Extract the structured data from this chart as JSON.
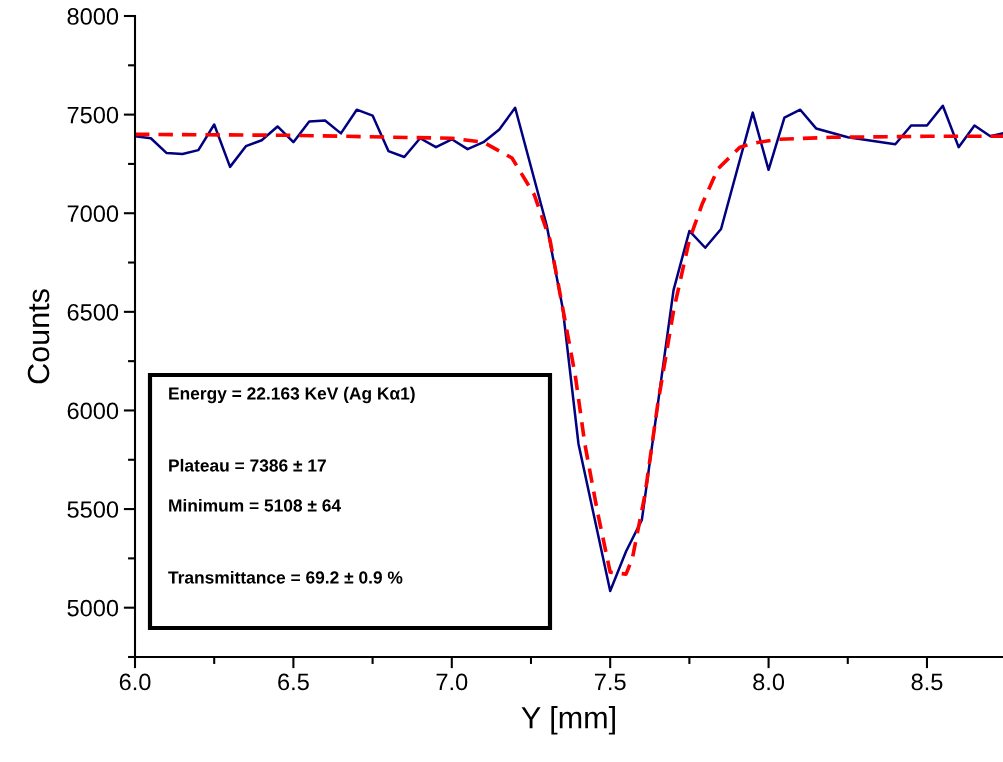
{
  "chart_data": {
    "type": "line",
    "xlabel": "Y [mm]",
    "ylabel": "Counts",
    "xlim": [
      6.0,
      8.74
    ],
    "ylim": [
      4750,
      8000
    ],
    "xticks": [
      {
        "value": 6,
        "label": "6.0"
      },
      {
        "value": 6.25,
        "label": null
      },
      6.5,
      {
        "value": 6.75,
        "label": null
      },
      {
        "value": 7,
        "label": "7.0"
      },
      {
        "value": 7.25,
        "label": null
      },
      7.5,
      {
        "value": 7.75,
        "label": null
      },
      {
        "value": 8,
        "label": "8.0"
      },
      {
        "value": 8.25,
        "label": null
      },
      8.5
    ],
    "yticks": [
      {
        "value": 4750,
        "label": null
      },
      5000,
      {
        "value": 5250,
        "label": null
      },
      5500,
      {
        "value": 5750,
        "label": null
      },
      6000,
      {
        "value": 6250,
        "label": null
      },
      6500,
      {
        "value": 6750,
        "label": null
      },
      7000,
      {
        "value": 7250,
        "label": null
      },
      7500,
      {
        "value": 7750,
        "label": null
      },
      8000
    ],
    "grid": false,
    "legend": false,
    "marker": "none",
    "series": [
      {
        "color": "#000080",
        "line_style": "solid",
        "x": [
          6.0,
          6.05,
          6.1,
          6.15,
          6.2,
          6.25,
          6.3,
          6.35,
          6.4,
          6.45,
          6.5,
          6.55,
          6.6,
          6.65,
          6.7,
          6.75,
          6.8,
          6.85,
          6.9,
          6.95,
          7.0,
          7.05,
          7.1,
          7.15,
          7.2,
          7.3,
          7.35,
          7.4,
          7.5,
          7.55,
          7.6,
          7.7,
          7.75,
          7.8,
          7.85,
          7.95,
          8.0,
          8.05,
          8.1,
          8.15,
          8.25,
          8.4,
          8.45,
          8.5,
          8.55,
          8.6,
          8.65,
          8.7,
          8.74
        ],
        "values": [
          7390,
          7380,
          7305,
          7300,
          7320,
          7450,
          7235,
          7340,
          7370,
          7440,
          7360,
          7465,
          7470,
          7405,
          7525,
          7495,
          7315,
          7285,
          7380,
          7335,
          7375,
          7325,
          7360,
          7425,
          7535,
          6935,
          6520,
          5830,
          5085,
          5285,
          5445,
          6610,
          6910,
          6825,
          6920,
          7510,
          7220,
          7485,
          7525,
          7430,
          7385,
          7350,
          7445,
          7445,
          7545,
          7335,
          7445,
          7390,
          7405
        ]
      },
      {
        "color": "#ff0000",
        "line_style": "dashed",
        "x": [
          6.0,
          6.5,
          7.0,
          7.1,
          7.19,
          7.26,
          7.31,
          7.35,
          7.39,
          7.42,
          7.46,
          7.5,
          7.55,
          7.57,
          7.61,
          7.65,
          7.7,
          7.75,
          7.79,
          7.84,
          7.91,
          7.95,
          8.03,
          8.2,
          8.5,
          8.74
        ],
        "values": [
          7400,
          7395,
          7380,
          7360,
          7280,
          7095,
          6865,
          6520,
          6175,
          5830,
          5485,
          5180,
          5170,
          5250,
          5575,
          6030,
          6505,
          6865,
          7045,
          7225,
          7335,
          7355,
          7375,
          7385,
          7390,
          7390
        ]
      }
    ],
    "annotations": [
      "Energy = 22.163 KeV (Ag Kα1)",
      "Plateau = 7386 ± 17",
      "Minimum = 5108 ± 64",
      "Transmittance = 69.2 ± 0.9 %"
    ]
  }
}
